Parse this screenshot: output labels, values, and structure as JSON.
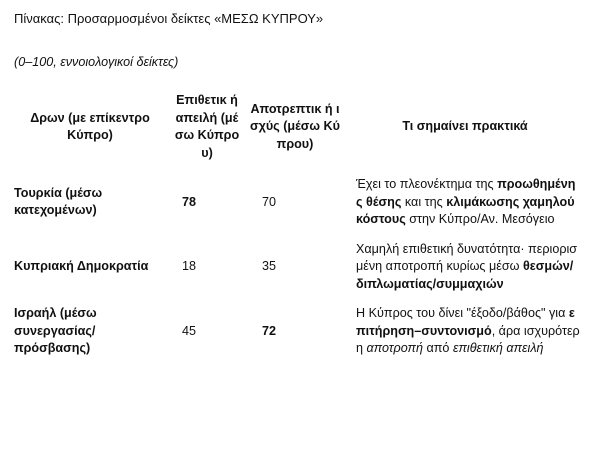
{
  "title": "Πίνακας: Προσαρμοσμένοι δείκτες «ΜΕΣΩ ΚΥΠΡΟΥ»",
  "subtitle": "(0–100, εννοιολογικοί δείκτες)",
  "table": {
    "headers": [
      "Δρων  (με επίκεντρο Κύπρο)",
      "Επιθετικ ή απειλή (μέσω Κύπρου)",
      "Αποτρεπτικ ή ισχύς (μέσω Κύπρου)",
      "Τι σημαίνει πρακτικά"
    ],
    "rows": [
      {
        "actor": "Τουρκία (μέσω κατεχομένων)",
        "threat": "78",
        "threat_bold": true,
        "deterrence": "70",
        "deterrence_bold": false,
        "meaning": [
          {
            "t": "Έχει το πλεονέκτημα της ",
            "s": ""
          },
          {
            "t": "προωθημένης θέσης",
            "s": "b"
          },
          {
            "t": " και της ",
            "s": ""
          },
          {
            "t": "κλιμάκωσης χαμηλού κόστους",
            "s": "b"
          },
          {
            "t": " στην Κύπρο/Αν. Μεσόγειο",
            "s": ""
          }
        ]
      },
      {
        "actor": "Κυπριακή Δημοκρατία",
        "threat": "18",
        "threat_bold": false,
        "deterrence": "35",
        "deterrence_bold": false,
        "meaning": [
          {
            "t": "Χαμηλή επιθετική δυνατότητα· περιορισμένη αποτροπή κυρίως μέσω ",
            "s": ""
          },
          {
            "t": "θεσμών/διπλωματίας/συμμαχιών",
            "s": "b"
          }
        ]
      },
      {
        "actor": "Ισραήλ (μέσω συνεργασίας/πρόσβασης)",
        "threat": "45",
        "threat_bold": false,
        "deterrence": "72",
        "deterrence_bold": true,
        "meaning": [
          {
            "t": "Η Κύπρος του δίνει \"έξοδο/βάθος\" για ",
            "s": ""
          },
          {
            "t": "επιτήρηση–συντονισμό",
            "s": "b"
          },
          {
            "t": ", άρα ισχυρότερη ",
            "s": ""
          },
          {
            "t": "αποτροπή",
            "s": "i"
          },
          {
            "t": " από ",
            "s": ""
          },
          {
            "t": "επιθετική απειλή",
            "s": "i"
          }
        ]
      }
    ]
  }
}
